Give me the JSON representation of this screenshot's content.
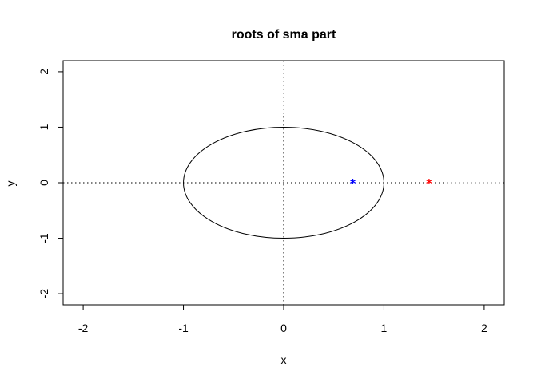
{
  "chart_data": {
    "type": "scatter",
    "title": "roots of sma part",
    "xlabel": "x",
    "ylabel": "y",
    "xlim": [
      -2.2,
      2.2
    ],
    "ylim": [
      -2.2,
      2.2
    ],
    "xticks": [
      -2,
      -1,
      0,
      1,
      2
    ],
    "yticks": [
      -2,
      -1,
      0,
      1,
      2
    ],
    "grid": false,
    "reference_lines": {
      "x": 0,
      "y": 0,
      "style": "dotted"
    },
    "unit_circle": {
      "center": [
        0,
        0
      ],
      "radius": 1
    },
    "points": [
      {
        "x": 0.69,
        "y": 0,
        "marker": "*",
        "color": "#0000ff"
      },
      {
        "x": 1.45,
        "y": 0,
        "marker": "*",
        "color": "#ff0000"
      }
    ]
  }
}
